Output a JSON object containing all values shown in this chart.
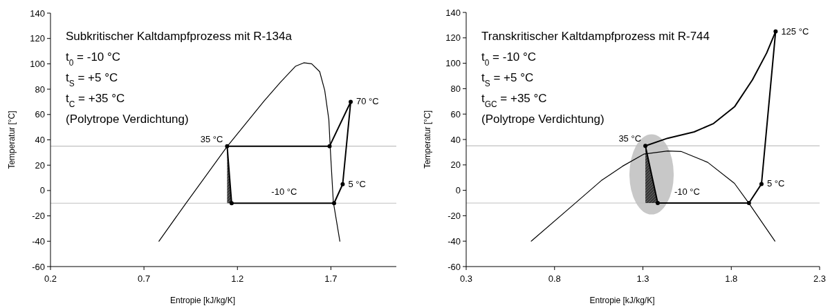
{
  "chart_data": [
    {
      "type": "line",
      "title": "Subkritischer Kaltdampfprozess mit R-134a",
      "xlabel": "Entropie [kJ/kg/K]",
      "ylabel": "Temperatur [°C]",
      "xlim": [
        0.2,
        2.05
      ],
      "xticks": [
        0.2,
        0.7,
        1.2,
        1.7
      ],
      "ylim": [
        -60,
        140
      ],
      "yticks": [
        -60,
        -40,
        -20,
        0,
        20,
        40,
        60,
        80,
        100,
        120,
        140
      ],
      "grid": false,
      "series": [
        {
          "color": "#000000",
          "marker": "none",
          "x": [
            0.78,
            0.92,
            1.145,
            1.343,
            1.43,
            1.51,
            1.555,
            1.597,
            1.64,
            1.667,
            1.689,
            1.696,
            1.713,
            1.748
          ],
          "values": [
            -40,
            -11,
            34.7,
            70.7,
            85.4,
            98,
            100.8,
            100,
            93.8,
            79,
            56,
            35,
            -9,
            -40
          ]
        },
        {
          "color": "#000000",
          "marker": "circle",
          "x": [
            1.145,
            1.169,
            1.717,
            1.763,
            1.806,
            1.693
          ],
          "values": [
            35,
            -10,
            -10,
            5,
            70,
            35
          ]
        },
        {
          "color": "#000000",
          "marker": "none",
          "x": [
            1.693,
            1.145
          ],
          "values": [
            35,
            35
          ]
        }
      ],
      "ref_lines": [
        {
          "axis": "y",
          "value": 35,
          "color": "#c0c0c0"
        },
        {
          "axis": "y",
          "value": -10,
          "color": "#c0c0c0"
        }
      ],
      "annotations": [
        "t$_{0}$ = -10 °C",
        "t$_{S}$ = +5 °C",
        "t$_{C}$ = +35 °C",
        "(Polytrope Verdichtung)",
        {
          "text": "35 °C",
          "x": 1.145,
          "y": 35
        },
        {
          "text": "70 °C",
          "x": 1.806,
          "y": 70
        },
        {
          "text": "5 °C",
          "x": 1.763,
          "y": 5
        },
        {
          "text": "-10 °C",
          "x": 1.45,
          "y": -10
        }
      ]
    },
    {
      "type": "line",
      "title": "Transkritischer Kaltdampfprozess mit R-744",
      "xlabel": "Entropie [kJ/kg/K]",
      "ylabel": "Temperatur [°C]",
      "xlim": [
        0.3,
        2.3
      ],
      "xticks": [
        0.3,
        0.8,
        1.3,
        1.8,
        2.3
      ],
      "ylim": [
        -60,
        140
      ],
      "yticks": [
        -60,
        -40,
        -20,
        0,
        20,
        40,
        60,
        80,
        100,
        120,
        140
      ],
      "grid": false,
      "series": [
        {
          "color": "#000000",
          "marker": "none",
          "x": [
            0.668,
            0.913,
            1.064,
            1.185,
            1.305,
            1.44,
            1.516,
            1.667,
            1.818,
            1.9,
            2.047
          ],
          "values": [
            -40,
            -10.6,
            7.6,
            19,
            28.5,
            31,
            30.6,
            22,
            5.5,
            -10.2,
            -40
          ]
        },
        {
          "color": "#000000",
          "marker": "circle",
          "x": [
            1.314,
            1.384,
            1.9,
            1.971,
            2.051
          ],
          "values": [
            35,
            -10,
            -10,
            5,
            125
          ]
        },
        {
          "color": "#000000",
          "marker": "none",
          "x": [
            2.051,
            2.0,
            1.92,
            1.82,
            1.7,
            1.59,
            1.44,
            1.314
          ],
          "values": [
            125,
            108,
            87,
            66,
            52.6,
            46,
            41,
            35
          ]
        }
      ],
      "ref_lines": [
        {
          "axis": "y",
          "value": 35,
          "color": "#c0c0c0"
        },
        {
          "axis": "y",
          "value": -10,
          "color": "#c0c0c0"
        }
      ],
      "annotations": [
        "t$_{0}$ = -10 °C",
        "t$_{S}$ = +5 °C",
        "t$_{GC}$ = +35 °C",
        "(Polytrope Verdichtung)",
        {
          "text": "35 °C",
          "x": 1.314,
          "y": 35
        },
        {
          "text": "125 °C",
          "x": 2.051,
          "y": 125
        },
        {
          "text": "5 °C",
          "x": 1.971,
          "y": 5
        },
        {
          "text": "-10 °C",
          "x": 1.55,
          "y": -10
        }
      ]
    }
  ]
}
